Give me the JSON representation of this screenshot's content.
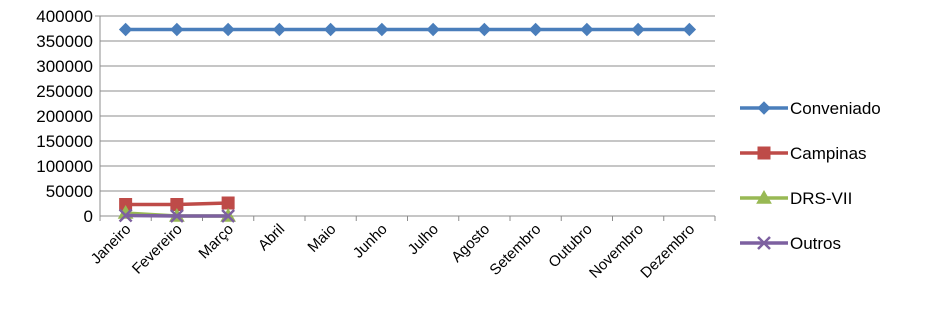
{
  "chart_data": {
    "type": "line",
    "title": "",
    "xlabel": "",
    "ylabel": "",
    "ylim": [
      0,
      400000
    ],
    "y_ticks": [
      "400000",
      "350000",
      "300000",
      "250000",
      "200000",
      "150000",
      "100000",
      "50000",
      "0"
    ],
    "y_tick_values": [
      400000,
      350000,
      300000,
      250000,
      200000,
      150000,
      100000,
      50000,
      0
    ],
    "grid": "horizontal",
    "legend_position": "right",
    "categories": [
      "Janeiro",
      "Fevereiro",
      "Março",
      "Abril",
      "Maio",
      "Junho",
      "Julho",
      "Agosto",
      "Setembro",
      "Outubro",
      "Novembro",
      "Dezembro"
    ],
    "series": [
      {
        "name": "Conveniado",
        "color": "#4a7ebb",
        "marker": "diamond",
        "values": [
          373000,
          373000,
          373000,
          373000,
          373000,
          373000,
          373000,
          373000,
          373000,
          373000,
          373000,
          373000
        ]
      },
      {
        "name": "Campinas",
        "color": "#be4b48",
        "marker": "square",
        "values": [
          23000,
          23000,
          26000,
          null,
          null,
          null,
          null,
          null,
          null,
          null,
          null,
          null
        ]
      },
      {
        "name": "DRS-VII",
        "color": "#98b954",
        "marker": "triangle",
        "values": [
          6000,
          0,
          0,
          null,
          null,
          null,
          null,
          null,
          null,
          null,
          null,
          null
        ]
      },
      {
        "name": "Outros",
        "color": "#7d60a0",
        "marker": "x",
        "values": [
          1000,
          0,
          0,
          null,
          null,
          null,
          null,
          null,
          null,
          null,
          null,
          null
        ]
      }
    ]
  }
}
